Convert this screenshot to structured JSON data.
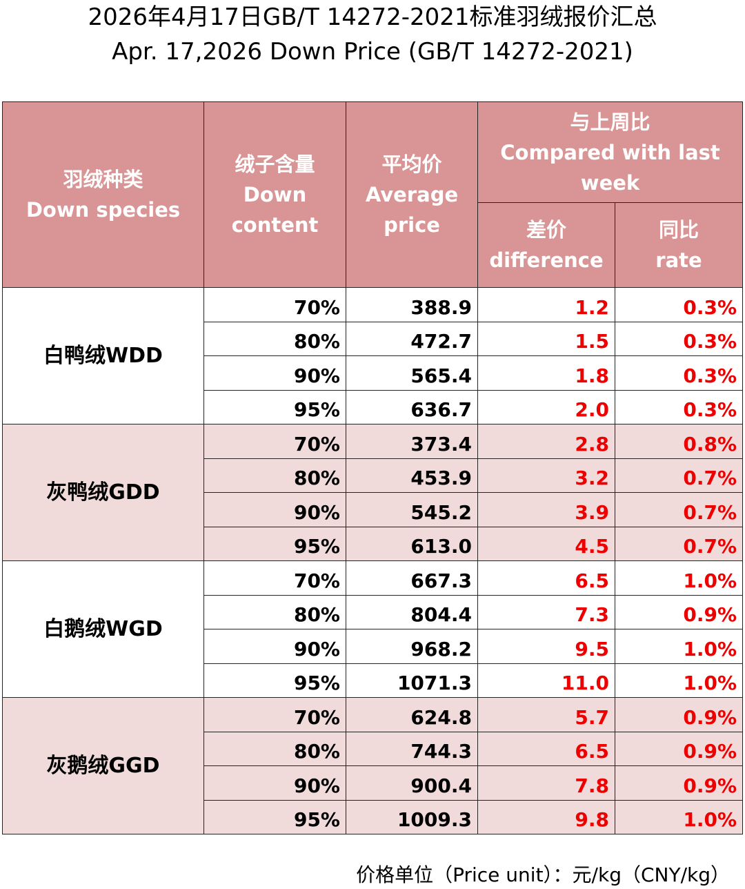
{
  "title_cn": "2026年4月17日GB/T 14272-2021标准羽绒报价汇总",
  "title_en": "Apr. 17,2026 Down Price (GB/T 14272-2021)",
  "headers": {
    "species": [
      "羽绒种类",
      "Down species"
    ],
    "content": [
      "绒子含量",
      "Down",
      "content"
    ],
    "avg": [
      "平均价",
      "Average",
      "price"
    ],
    "compare": [
      "与上周比",
      "Compared with last",
      "week"
    ],
    "diff": [
      "差价",
      "difference"
    ],
    "rate": [
      "同比",
      "rate"
    ]
  },
  "groups": [
    {
      "species": "白鸭绒WDD",
      "shade": "white",
      "rows": [
        {
          "content": "70%",
          "avg": "388.9",
          "diff": "1.2",
          "rate": "0.3%"
        },
        {
          "content": "80%",
          "avg": "472.7",
          "diff": "1.5",
          "rate": "0.3%"
        },
        {
          "content": "90%",
          "avg": "565.4",
          "diff": "1.8",
          "rate": "0.3%"
        },
        {
          "content": "95%",
          "avg": "636.7",
          "diff": "2.0",
          "rate": "0.3%"
        }
      ]
    },
    {
      "species": "灰鸭绒GDD",
      "shade": "pink",
      "rows": [
        {
          "content": "70%",
          "avg": "373.4",
          "diff": "2.8",
          "rate": "0.8%"
        },
        {
          "content": "80%",
          "avg": "453.9",
          "diff": "3.2",
          "rate": "0.7%"
        },
        {
          "content": "90%",
          "avg": "545.2",
          "diff": "3.9",
          "rate": "0.7%"
        },
        {
          "content": "95%",
          "avg": "613.0",
          "diff": "4.5",
          "rate": "0.7%"
        }
      ]
    },
    {
      "species": "白鹅绒WGD",
      "shade": "white",
      "rows": [
        {
          "content": "70%",
          "avg": "667.3",
          "diff": "6.5",
          "rate": "1.0%"
        },
        {
          "content": "80%",
          "avg": "804.4",
          "diff": "7.3",
          "rate": "0.9%"
        },
        {
          "content": "90%",
          "avg": "968.2",
          "diff": "9.5",
          "rate": "1.0%"
        },
        {
          "content": "95%",
          "avg": "1071.3",
          "diff": "11.0",
          "rate": "1.0%"
        }
      ]
    },
    {
      "species": "灰鹅绒GGD",
      "shade": "pink",
      "rows": [
        {
          "content": "70%",
          "avg": "624.8",
          "diff": "5.7",
          "rate": "0.9%"
        },
        {
          "content": "80%",
          "avg": "744.3",
          "diff": "6.5",
          "rate": "0.9%"
        },
        {
          "content": "90%",
          "avg": "900.4",
          "diff": "7.8",
          "rate": "0.9%"
        },
        {
          "content": "95%",
          "avg": "1009.3",
          "diff": "9.8",
          "rate": "1.0%"
        }
      ]
    }
  ],
  "unit_note": "价格单位（Price unit）：元/kg（CNY/kg）",
  "colors": {
    "header_bg": "#d99595",
    "header_text": "#ffffff",
    "pink_row": "#f1dada",
    "change_text": "#ee0000"
  }
}
